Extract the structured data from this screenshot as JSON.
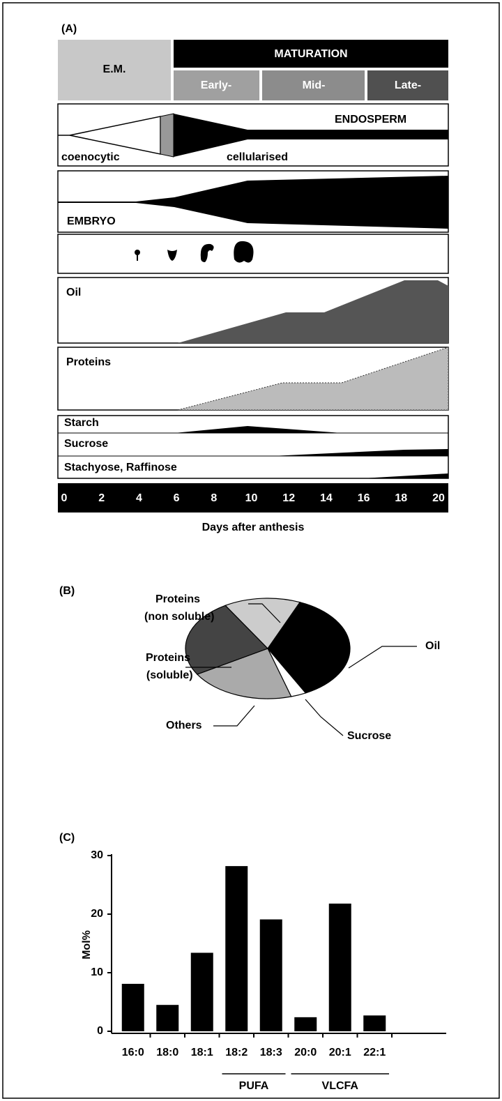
{
  "panel_a": {
    "label": "(A)",
    "phases": {
      "em": "E.M.",
      "maturation": "MATURATION",
      "early": "Early-",
      "mid": "Mid-",
      "late": "Late-"
    },
    "tracks": {
      "endosperm": "ENDOSPERM",
      "coenocytic": "coenocytic",
      "cellularised": "cellularised",
      "embryo": "EMBRYO",
      "oil": "Oil",
      "proteins": "Proteins",
      "starch": "Starch",
      "sucrose": "Sucrose",
      "sugars": "Stachyose, Raffinose"
    },
    "days": [
      0,
      2,
      4,
      6,
      8,
      10,
      12,
      14,
      16,
      18,
      20
    ],
    "xlabel": "Days after anthesis"
  },
  "chart_data": [
    {
      "type": "pie",
      "label": "(B)",
      "categories": [
        "Oil",
        "Sucrose",
        "Others",
        "Proteins (soluble)",
        "Proteins (non soluble)"
      ],
      "values": [
        36,
        3,
        21,
        25,
        15
      ],
      "colors": [
        "#000000",
        "#ffffff",
        "#aaaaaa",
        "#444444",
        "#cccccc"
      ]
    },
    {
      "type": "bar",
      "label": "(C)",
      "ylabel": "Mol%",
      "categories": [
        "16:0",
        "18:0",
        "18:1",
        "18:2",
        "18:3",
        "20:0",
        "20:1",
        "22:1"
      ],
      "values": [
        8.1,
        4.5,
        13.4,
        28.2,
        19.1,
        2.4,
        21.8,
        2.7
      ],
      "color": "#000000",
      "ylim": [
        0,
        30
      ],
      "yticks": [
        0,
        10,
        20,
        30
      ],
      "groups": [
        "PUFA",
        "VLCFA"
      ]
    }
  ]
}
